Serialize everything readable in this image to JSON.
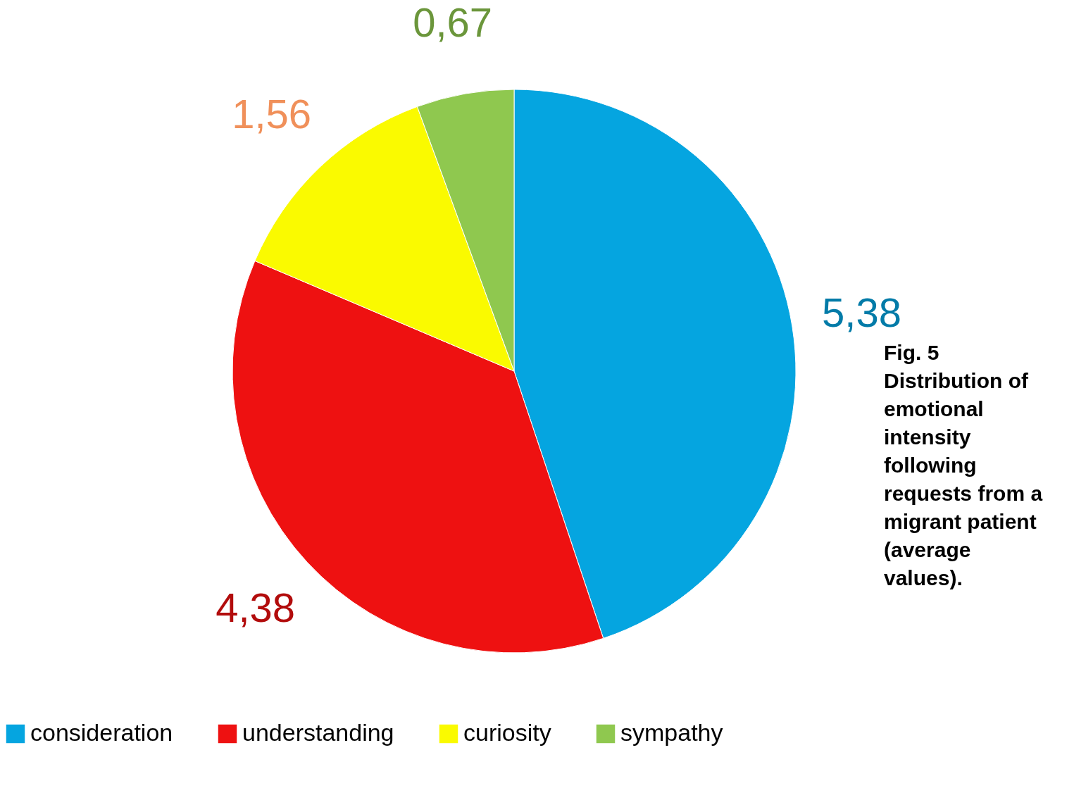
{
  "chart_data": {
    "type": "pie",
    "categories": [
      "consideration",
      "understanding",
      "curiosity",
      "sympathy"
    ],
    "values": [
      5.38,
      4.38,
      1.56,
      0.67
    ],
    "colors": [
      "#05a5e0",
      "#ee1111",
      "#fafa00",
      "#8fc84f"
    ],
    "value_labels": [
      "5,38",
      "4,38",
      "1,56",
      "0,67"
    ],
    "legend": "bottom",
    "annotations": [
      "Fig. 5 Distribution of emotional intensity following requests from a migrant patient (average values)."
    ]
  }
}
